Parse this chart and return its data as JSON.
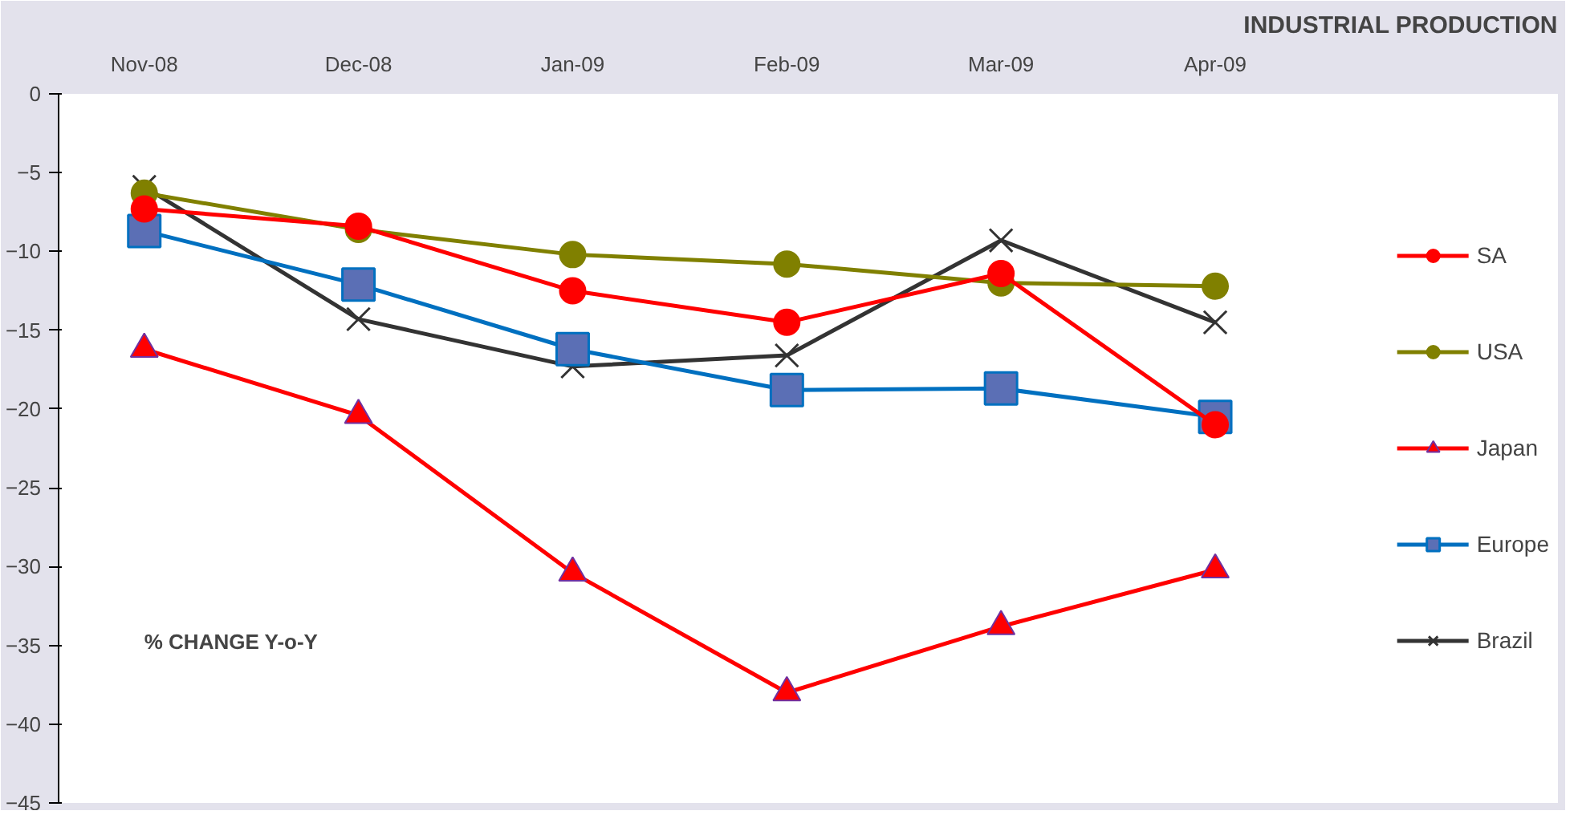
{
  "chart_data": {
    "type": "line",
    "title": "INDUSTRIAL PRODUCTION",
    "categories": [
      "Nov-08",
      "Dec-08",
      "Jan-09",
      "Feb-09",
      "Mar-09",
      "Apr-09"
    ],
    "ylim": [
      -45,
      0
    ],
    "yticks": [
      0,
      -5,
      -10,
      -15,
      -20,
      -25,
      -30,
      -35,
      -40,
      -45
    ],
    "grid": false,
    "legend": "right",
    "annotations": [
      "% CHANGE Y-o-Y"
    ],
    "series": [
      {
        "name": "SA",
        "color": "#ff0000",
        "marker": "circle",
        "values": [
          -7.3,
          -8.4,
          -12.5,
          -14.5,
          -11.4,
          -21.0
        ]
      },
      {
        "name": "USA",
        "color": "#808000",
        "marker": "circle",
        "values": [
          -6.3,
          -8.6,
          -10.2,
          -10.8,
          -12.0,
          -12.2
        ]
      },
      {
        "name": "Japan",
        "color": "#ff0000",
        "marker": "triangle",
        "values": [
          -16.2,
          -20.4,
          -30.4,
          -38.0,
          -33.8,
          -30.2
        ]
      },
      {
        "name": "Europe",
        "color": "#0070c0",
        "marker": "square",
        "values": [
          -8.7,
          -12.1,
          -16.2,
          -18.8,
          -18.7,
          -20.5
        ]
      },
      {
        "name": "Brazil",
        "color": "#333333",
        "marker": "cross",
        "values": [
          -5.9,
          -14.3,
          -17.3,
          -16.6,
          -9.3,
          -14.5
        ]
      }
    ]
  }
}
